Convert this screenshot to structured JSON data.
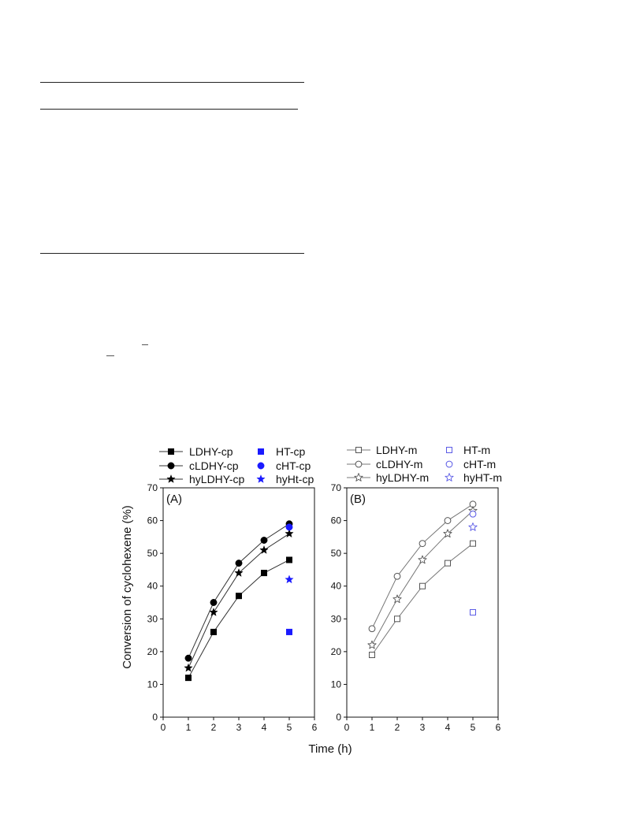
{
  "figure": {
    "shared_ylabel": "Conversion of cyclohexene (%)",
    "shared_xlabel": "Time (h)"
  },
  "chart_data": [
    {
      "type": "scatter",
      "panel_label": "(A)",
      "xlim": [
        0,
        6
      ],
      "ylim": [
        0,
        70
      ],
      "x_ticks": [
        0,
        1,
        2,
        3,
        4,
        5,
        6
      ],
      "y_ticks": [
        0,
        10,
        20,
        30,
        40,
        50,
        60,
        70
      ],
      "grid": false,
      "legend_placement": "top",
      "series": [
        {
          "name": "LDHY-cp",
          "marker": "filled-square",
          "color": "#000000",
          "line": true,
          "x": [
            1,
            2,
            3,
            4,
            5
          ],
          "y": [
            12,
            26,
            37,
            44,
            48
          ]
        },
        {
          "name": "cLDHY-cp",
          "marker": "filled-circle",
          "color": "#000000",
          "line": true,
          "x": [
            1,
            2,
            3,
            4,
            5
          ],
          "y": [
            18,
            35,
            47,
            54,
            59
          ]
        },
        {
          "name": "hyLDHY-cp",
          "marker": "filled-star",
          "color": "#000000",
          "line": true,
          "x": [
            1,
            2,
            3,
            4,
            5
          ],
          "y": [
            15,
            32,
            44,
            51,
            56
          ]
        },
        {
          "name": "HT-cp",
          "marker": "filled-square",
          "color": "#1a1aff",
          "line": false,
          "x": [
            5
          ],
          "y": [
            26
          ]
        },
        {
          "name": "cHT-cp",
          "marker": "filled-circle",
          "color": "#1a1aff",
          "line": false,
          "x": [
            5
          ],
          "y": [
            58
          ]
        },
        {
          "name": "hyHt-cp",
          "marker": "filled-star",
          "color": "#1a1aff",
          "line": false,
          "x": [
            5
          ],
          "y": [
            42
          ]
        }
      ]
    },
    {
      "type": "scatter",
      "panel_label": "(B)",
      "xlim": [
        0,
        6
      ],
      "ylim": [
        0,
        70
      ],
      "x_ticks": [
        0,
        1,
        2,
        3,
        4,
        5,
        6
      ],
      "y_ticks": [
        0,
        10,
        20,
        30,
        40,
        50,
        60,
        70
      ],
      "grid": false,
      "legend_placement": "top",
      "series": [
        {
          "name": "LDHY-m",
          "marker": "open-square",
          "color": "#555555",
          "line": true,
          "x": [
            1,
            2,
            3,
            4,
            5
          ],
          "y": [
            19,
            30,
            40,
            47,
            53
          ]
        },
        {
          "name": "cLDHY-m",
          "marker": "open-circle",
          "color": "#555555",
          "line": true,
          "x": [
            1,
            2,
            3,
            4,
            5
          ],
          "y": [
            27,
            43,
            53,
            60,
            65
          ]
        },
        {
          "name": "hyLDHY-m",
          "marker": "open-star",
          "color": "#555555",
          "line": true,
          "x": [
            1,
            2,
            3,
            4,
            5
          ],
          "y": [
            22,
            36,
            48,
            56,
            63
          ]
        },
        {
          "name": "HT-m",
          "marker": "open-square",
          "color": "#5a5ae6",
          "line": false,
          "x": [
            5
          ],
          "y": [
            32
          ]
        },
        {
          "name": "cHT-m",
          "marker": "open-circle",
          "color": "#5a5ae6",
          "line": false,
          "x": [
            5
          ],
          "y": [
            62
          ]
        },
        {
          "name": "hyHT-m",
          "marker": "open-star",
          "color": "#5a5ae6",
          "line": false,
          "x": [
            5
          ],
          "y": [
            58
          ]
        }
      ]
    }
  ]
}
